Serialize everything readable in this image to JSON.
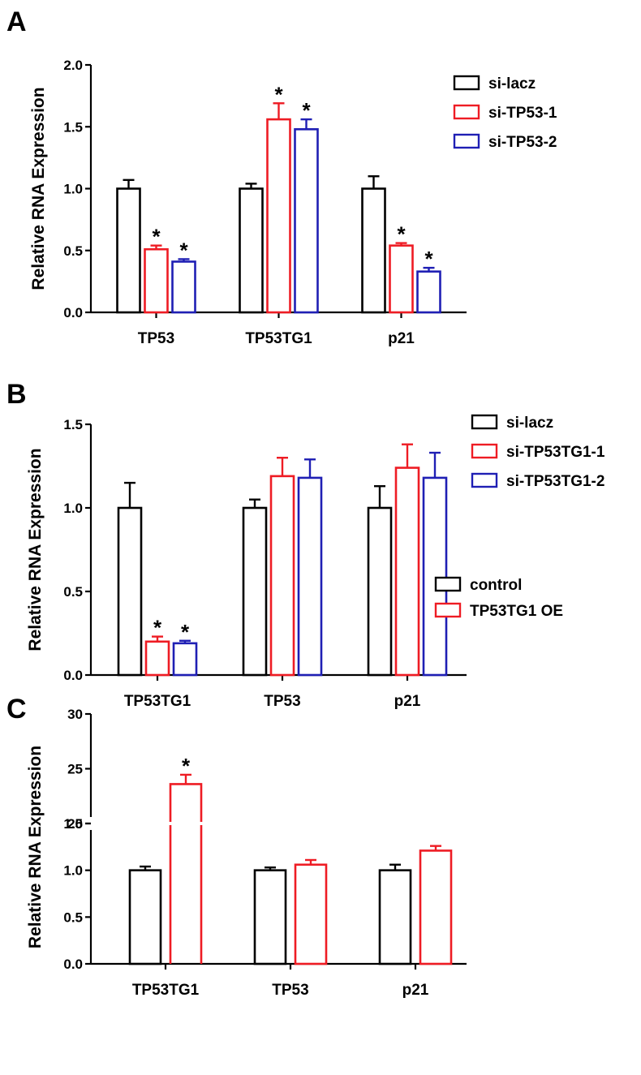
{
  "colors": {
    "si-lacz": "#000000",
    "red": "#ee1c24",
    "blue": "#1f1fb4"
  },
  "chart_data": [
    {
      "panel": "A",
      "type": "bar",
      "ylabel": "Relative RNA Expression",
      "ylim": [
        0,
        2.0
      ],
      "yticks": [
        "0.0",
        "0.5",
        "1.0",
        "1.5",
        "2.0"
      ],
      "categories": [
        "TP53",
        "TP53TG1",
        "p21"
      ],
      "legend_position": "top-right",
      "series": [
        {
          "name": "si-lacz",
          "color": "#000000",
          "values": [
            1.0,
            1.0,
            1.0
          ],
          "errors": [
            0.07,
            0.04,
            0.1
          ],
          "significant": [
            false,
            false,
            false
          ]
        },
        {
          "name": "si-TP53-1",
          "color": "#ee1c24",
          "values": [
            0.51,
            1.56,
            0.54
          ],
          "errors": [
            0.03,
            0.13,
            0.02
          ],
          "significant": [
            true,
            true,
            true
          ]
        },
        {
          "name": "si-TP53-2",
          "color": "#1f1fb4",
          "values": [
            0.41,
            1.48,
            0.33
          ],
          "errors": [
            0.02,
            0.08,
            0.03
          ],
          "significant": [
            true,
            true,
            true
          ]
        }
      ]
    },
    {
      "panel": "B",
      "type": "bar",
      "ylabel": "Relative RNA Expression",
      "ylim": [
        0,
        1.5
      ],
      "yticks": [
        "0.0",
        "0.5",
        "1.0",
        "1.5"
      ],
      "categories": [
        "TP53TG1",
        "TP53",
        "p21"
      ],
      "legend_position": "top-right",
      "series": [
        {
          "name": "si-lacz",
          "color": "#000000",
          "values": [
            1.0,
            1.0,
            1.0
          ],
          "errors": [
            0.15,
            0.05,
            0.13
          ],
          "significant": [
            false,
            false,
            false
          ]
        },
        {
          "name": "si-TP53TG1-1",
          "color": "#ee1c24",
          "values": [
            0.2,
            1.19,
            1.24
          ],
          "errors": [
            0.03,
            0.11,
            0.14
          ],
          "significant": [
            true,
            false,
            false
          ]
        },
        {
          "name": "si-TP53TG1-2",
          "color": "#1f1fb4",
          "values": [
            0.19,
            1.18,
            1.18
          ],
          "errors": [
            0.015,
            0.11,
            0.15
          ],
          "significant": [
            true,
            false,
            false
          ]
        }
      ]
    },
    {
      "panel": "C",
      "type": "bar",
      "ylabel": "Relative RNA Expression",
      "broken_axis": {
        "lower_ylim": [
          0,
          1.5
        ],
        "upper_ylim": [
          20,
          30
        ]
      },
      "yticks_lower": [
        "0.0",
        "0.5",
        "1.0",
        "1.5"
      ],
      "yticks_upper": [
        "20",
        "25",
        "30"
      ],
      "categories": [
        "TP53TG1",
        "TP53",
        "p21"
      ],
      "legend_position": "top-right",
      "series": [
        {
          "name": "control",
          "color": "#000000",
          "values": [
            1.0,
            1.0,
            1.0
          ],
          "errors": [
            0.04,
            0.03,
            0.06
          ],
          "significant": [
            false,
            false,
            false
          ]
        },
        {
          "name": "TP53TG1 OE",
          "color": "#ee1c24",
          "values": [
            23.6,
            1.06,
            1.21
          ],
          "errors": [
            0.85,
            0.05,
            0.05
          ],
          "significant": [
            true,
            false,
            false
          ]
        }
      ]
    }
  ]
}
